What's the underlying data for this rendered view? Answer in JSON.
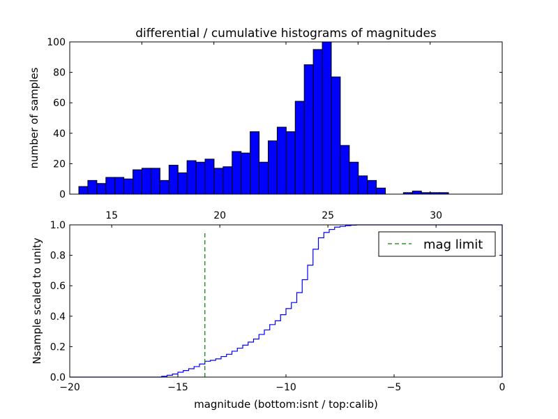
{
  "chart_data": [
    {
      "type": "bar",
      "title": "differential / cumulative histograms of magnitudes",
      "xlabel": "",
      "ylabel": "number of samples",
      "xlim": [
        13.06,
        33.06
      ],
      "ylim": [
        0,
        100
      ],
      "yticks": [
        "0",
        "20",
        "40",
        "60",
        "80",
        "100"
      ],
      "bin_start": 13.48,
      "bin_width": 0.417,
      "values": [
        5,
        9,
        7,
        11,
        11,
        10,
        16,
        17,
        17,
        9,
        19,
        14,
        22,
        21,
        23,
        17,
        18,
        28,
        27,
        41,
        21,
        35,
        44,
        41,
        61,
        85,
        95,
        100,
        77,
        32,
        21,
        12,
        9,
        4,
        0,
        0,
        1,
        2,
        1,
        1,
        1
      ],
      "colors": {
        "bar": "#0000ff",
        "edge": "#000000"
      }
    },
    {
      "type": "line",
      "style": "step",
      "xlabel": "magnitude (bottom:isnt / top:calib)",
      "ylabel": "Nsample scaled to unity",
      "xlim": [
        -20,
        0
      ],
      "ylim": [
        0,
        1
      ],
      "xticks": [
        "−20",
        "−15",
        "−10",
        "−5",
        "0"
      ],
      "xtick_values": [
        -20,
        -15,
        -10,
        -5,
        0
      ],
      "yticks": [
        "0.0",
        "0.2",
        "0.4",
        "0.6",
        "0.8",
        "1.0"
      ],
      "top_xticks": [
        "15",
        "20",
        "25",
        "30"
      ],
      "top_xtick_values": [
        15,
        20,
        25,
        30
      ],
      "top_xlim": [
        13.06,
        33.06
      ],
      "bin_start": -15.75,
      "bin_width": 0.25,
      "values": [
        0.005,
        0.012,
        0.02,
        0.032,
        0.043,
        0.055,
        0.069,
        0.086,
        0.104,
        0.11,
        0.12,
        0.135,
        0.15,
        0.17,
        0.19,
        0.21,
        0.23,
        0.25,
        0.28,
        0.31,
        0.345,
        0.37,
        0.41,
        0.45,
        0.49,
        0.555,
        0.64,
        0.735,
        0.84,
        0.915,
        0.95,
        0.97,
        0.985,
        0.99,
        0.995,
        0.998,
        1.0
      ],
      "mag_limit": -13.75,
      "mag_limit_top": 0.96,
      "legend": {
        "label": "mag limit",
        "placement": "top-right"
      },
      "colors": {
        "line": "#0000ff",
        "mag_limit": "#008000"
      }
    }
  ]
}
